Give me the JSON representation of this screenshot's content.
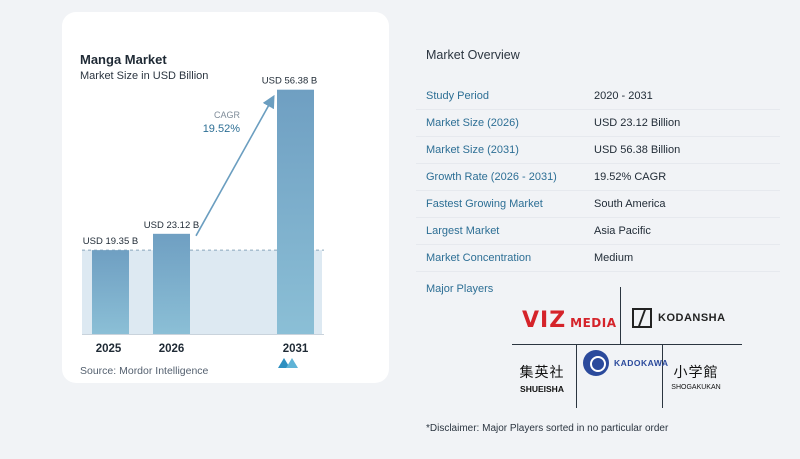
{
  "chart": {
    "title": "Manga Market",
    "subtitle": "Market Size in USD Billion",
    "source": "Source:  Mordor Intelligence",
    "cagr_label": "CAGR",
    "cagr_value": "19.52%"
  },
  "chart_data": {
    "type": "bar",
    "title": "Manga Market",
    "subtitle": "Market Size in USD Billion",
    "categories": [
      "2025",
      "2026",
      "2031"
    ],
    "values": [
      19.35,
      23.12,
      56.38
    ],
    "data_labels": [
      "USD 19.35 B",
      "USD 23.12 B",
      "USD 56.38 B"
    ],
    "annotation": {
      "label": "CAGR",
      "value": "19.52%"
    },
    "ylim": [
      0,
      60
    ],
    "grid": false,
    "bar_colors": [
      "#6b9ec0",
      "#6b9ec0",
      "#6b9ec0"
    ]
  },
  "overview": {
    "title": "Market Overview",
    "rows": [
      {
        "label": "Study Period",
        "value": "2020 - 2031"
      },
      {
        "label": "Market Size (2026)",
        "value": "USD 23.12 Billion"
      },
      {
        "label": "Market Size (2031)",
        "value": "USD 56.38 Billion"
      },
      {
        "label": "Growth Rate (2026 - 2031)",
        "value": "19.52% CAGR"
      },
      {
        "label": "Fastest Growing Market",
        "value": "South America"
      },
      {
        "label": "Largest Market",
        "value": "Asia Pacific"
      },
      {
        "label": "Market Concentration",
        "value": "Medium"
      }
    ]
  },
  "players": {
    "title": "Major Players",
    "viz": {
      "word": "VIZ",
      "sub": "MEDIA"
    },
    "kodansha": "KODANSHA",
    "shueisha": {
      "jp": "集英社",
      "romaji": "SHUEISHA"
    },
    "kadokawa": "KADOKAWA",
    "shogakukan": {
      "jp": "小学館",
      "romaji": "SHOGAKUKAN"
    }
  },
  "disclaimer": "*Disclaimer: Major Players sorted in no particular order",
  "colors": {
    "bar": "#6b9ec0",
    "accent": "#2d6f95",
    "band": "#dde9f2"
  }
}
